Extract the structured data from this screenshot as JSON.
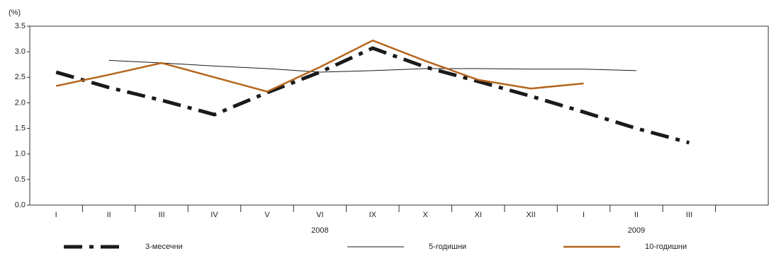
{
  "chart_data": {
    "type": "line",
    "y_label": "(%)",
    "categories": [
      "I",
      "II",
      "III",
      "IV",
      "V",
      "VI",
      "IX",
      "X",
      "XI",
      "XII",
      "I",
      "II",
      "III",
      null
    ],
    "year_labels": [
      {
        "label": "2008",
        "category": 5
      },
      {
        "label": "2009",
        "category": 11
      }
    ],
    "series": [
      {
        "name": "3-месечни",
        "color": "#1a1a1a",
        "style": "dashdot",
        "width": 5,
        "values": [
          2.6,
          2.3,
          2.05,
          1.77,
          2.2,
          2.6,
          3.07,
          2.7,
          2.42,
          2.13,
          1.82,
          1.5,
          1.22,
          null
        ]
      },
      {
        "name": "5-годишни",
        "color": "#1a1a1a",
        "style": "solid",
        "width": 1,
        "values": [
          null,
          2.83,
          2.78,
          2.72,
          2.67,
          2.6,
          2.63,
          2.67,
          2.67,
          2.66,
          2.66,
          2.63,
          null,
          null
        ]
      },
      {
        "name": "10-годишни",
        "color": "#b5651d",
        "style": "solid",
        "width": 2.5,
        "values": [
          2.33,
          2.55,
          2.78,
          2.5,
          2.22,
          2.7,
          3.22,
          2.82,
          2.45,
          2.28,
          2.38,
          null,
          null,
          null
        ]
      }
    ],
    "ylim": [
      0,
      3.5
    ],
    "yticks": [
      {
        "value": 0,
        "label": "0.0"
      },
      0.5,
      {
        "value": 1,
        "label": "1.0"
      },
      1.5,
      {
        "value": 2,
        "label": "2.0"
      },
      2.5,
      {
        "value": 3,
        "label": "3.0"
      },
      3.5
    ],
    "grid": false
  }
}
